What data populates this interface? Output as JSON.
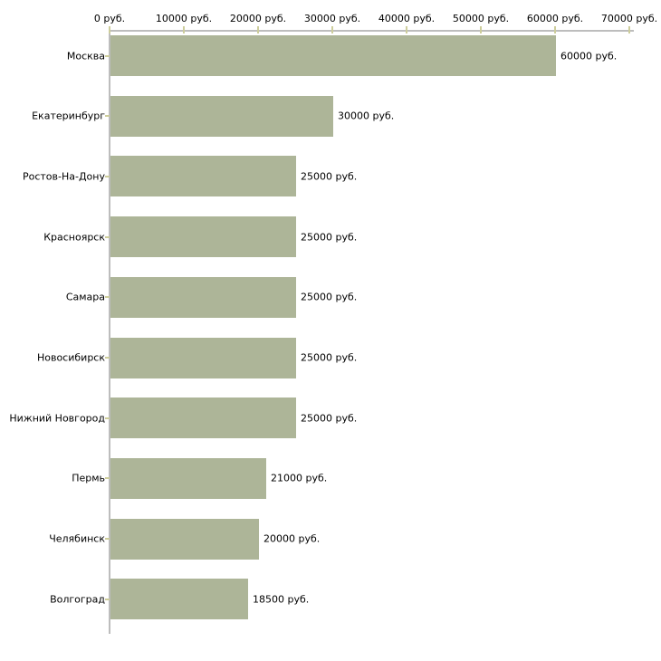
{
  "chart_data": {
    "type": "bar",
    "orientation": "horizontal",
    "title": "",
    "xlabel": "",
    "ylabel": "",
    "grid": false,
    "legend": null,
    "categories": [
      "Москва",
      "Екатеринбург",
      "Ростов-На-Дону",
      "Красноярск",
      "Самара",
      "Новосибирск",
      "Нижний Новгород",
      "Пермь",
      "Челябинск",
      "Волгоград"
    ],
    "values": [
      60000,
      30000,
      25000,
      25000,
      25000,
      25000,
      25000,
      21000,
      20000,
      18500
    ],
    "value_labels": [
      "60000 руб.",
      "30000 руб.",
      "25000 руб.",
      "25000 руб.",
      "25000 руб.",
      "25000 руб.",
      "25000 руб.",
      "21000 руб.",
      "20000 руб.",
      "18500 руб."
    ],
    "x_tick_values": [
      0,
      10000,
      20000,
      30000,
      40000,
      50000,
      60000,
      70000
    ],
    "x_tick_labels": [
      "0 руб.",
      "10000 руб.",
      "20000 руб.",
      "30000 руб.",
      "40000 руб.",
      "50000 руб.",
      "60000 руб.",
      "70000 руб."
    ],
    "xlim": [
      0,
      70000
    ],
    "colors": {
      "bar": "#adb598",
      "axis_line": "#bdbdbd",
      "tick_mark": "#cdcd9b",
      "text": "#000000",
      "background": "#ffffff"
    }
  }
}
